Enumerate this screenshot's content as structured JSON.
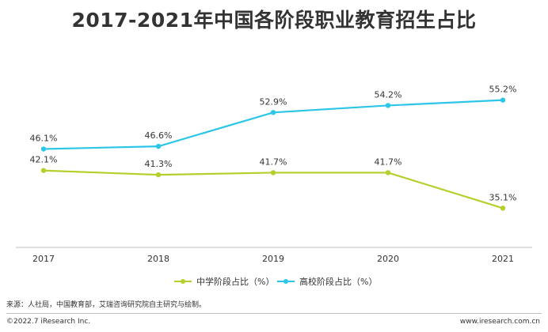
{
  "chart_data": {
    "type": "line",
    "title": "2017-2021年中国各阶段职业教育招生占比",
    "categories": [
      "2017",
      "2018",
      "2019",
      "2020",
      "2021"
    ],
    "series": [
      {
        "name": "中学阶段占比（%）",
        "color": "#b5cf2c",
        "values": [
          42.1,
          41.3,
          41.7,
          41.7,
          35.1
        ],
        "labels": [
          "42.1%",
          "41.3%",
          "41.7%",
          "41.7%",
          "35.1%"
        ]
      },
      {
        "name": "高校阶段占比（%）",
        "color": "#2cc6e8",
        "values": [
          46.1,
          46.6,
          52.9,
          54.2,
          55.2
        ],
        "labels": [
          "46.1%",
          "46.6%",
          "52.9%",
          "54.2%",
          "55.2%"
        ]
      }
    ],
    "ylim": [
      30,
      60
    ],
    "grid": false,
    "legend": "bottom"
  },
  "source": "来源：人社局，中国教育部，艾瑞咨询研究院自主研究与绘制。",
  "copyright": "©2022.7 iResearch Inc.",
  "website": "www.iresearch.com.cn"
}
